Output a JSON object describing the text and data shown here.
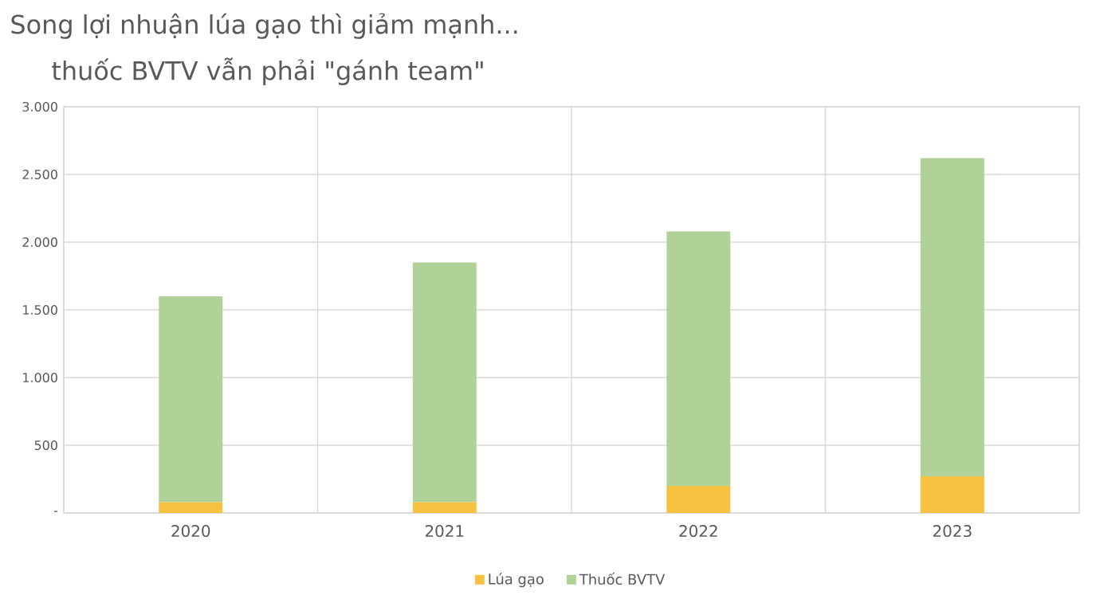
{
  "chart_data": {
    "type": "bar",
    "title": "Song lợi nhuận lúa gạo thì giảm mạnh...",
    "subtitle": "thuốc BVTV vẫn phải \"gánh team\"",
    "categories": [
      "2020",
      "2021",
      "2022",
      "2023"
    ],
    "series": [
      {
        "name": "Lúa gạo",
        "color": "#f5c242",
        "values": [
          80,
          80,
          200,
          270
        ]
      },
      {
        "name": "Thuốc BVTV",
        "color": "#b0d197",
        "values": [
          1520,
          1770,
          1880,
          2350
        ]
      }
    ],
    "stacked": true,
    "ylim": [
      0,
      3000
    ],
    "yticks": [
      {
        "value": 0,
        "label": "-"
      },
      {
        "value": 500,
        "label": "500"
      },
      {
        "value": 1000,
        "label": "1.000"
      },
      {
        "value": 1500,
        "label": "1.500"
      },
      {
        "value": 2000,
        "label": "2.000"
      },
      {
        "value": 2500,
        "label": "2.500"
      },
      {
        "value": 3000,
        "label": "3.000"
      }
    ],
    "grid": true,
    "legend": "bottom"
  }
}
